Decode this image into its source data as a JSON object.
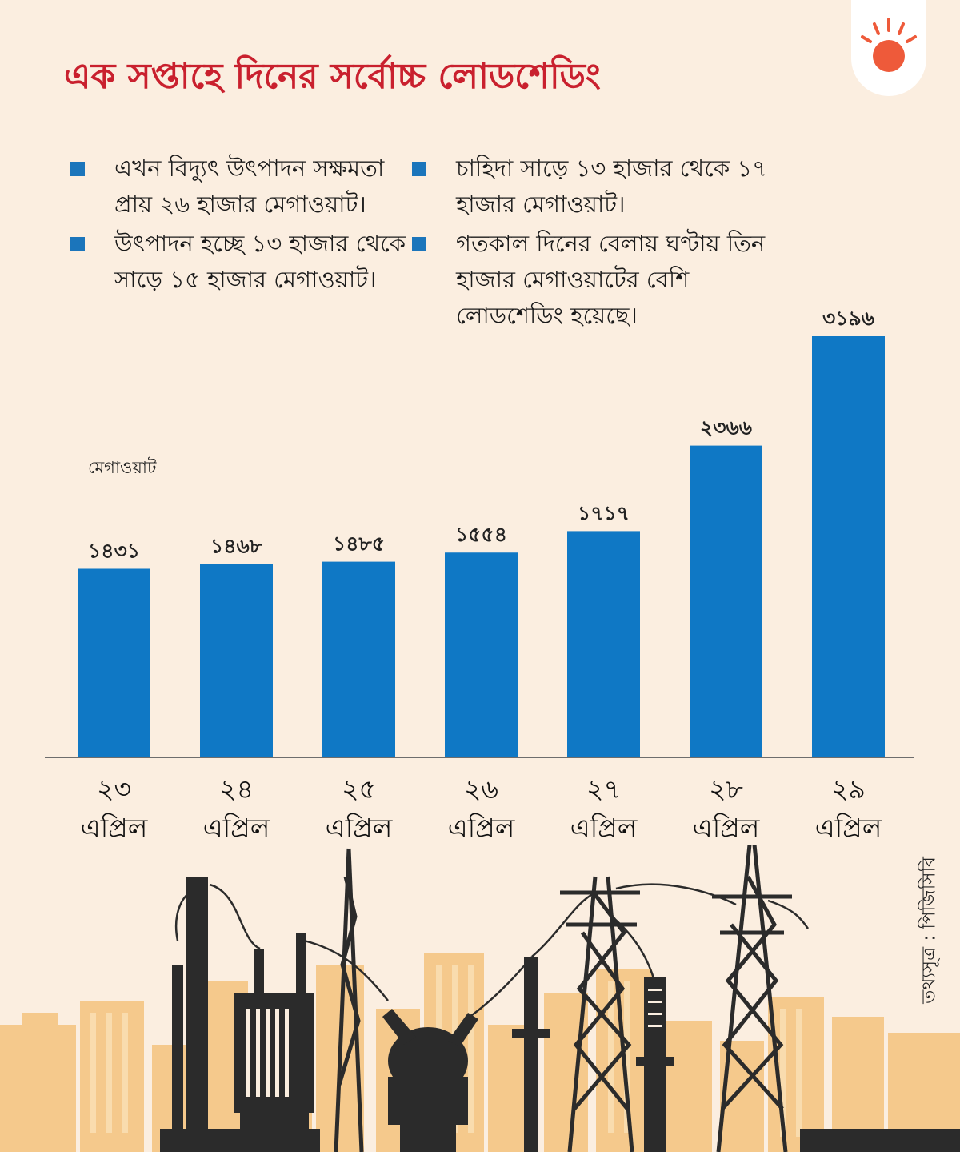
{
  "title": "এক সপ্তাহে দিনের সর্বোচ্চ লোডশেডিং",
  "bullets_left": [
    "এখন বিদ্যুৎ  উৎপাদন সক্ষমতা প্রায় ২৬ হাজার মেগাওয়াট।",
    "উৎপাদন হচ্ছে ১৩ হাজার থেকে সাড়ে ১৫ হাজার মেগাওয়াট।"
  ],
  "bullets_right": [
    "চাহিদা সাড়ে ১৩ হাজার থেকে ১৭ হাজার মেগাওয়াট।",
    "গতকাল দিনের বেলায় ঘণ্টায় তিন হাজার মেগাওয়াটের বেশি লোডশেডিং হয়েছে।"
  ],
  "source": "তথ্যসূত্র : পিজিসিবি",
  "colors": {
    "background": "#fbeee0",
    "title": "#c9202e",
    "bar": "#0f78c5",
    "bullet": "#1b75bb",
    "logo_sun": "#ee5a3a",
    "skyline": "#f5c98c",
    "silhouette": "#2b2b2b"
  },
  "chart_data": {
    "type": "bar",
    "ylabel": "মেগাওয়াট",
    "categories": [
      "২৩ এপ্রিল",
      "২৪ এপ্রিল",
      "২৫ এপ্রিল",
      "২৬ এপ্রিল",
      "২৭ এপ্রিল",
      "২৮ এপ্রিল",
      "২৯ এপ্রিল"
    ],
    "category_day": [
      "২৩",
      "২৪",
      "২৫",
      "২৬",
      "২৭",
      "২৮",
      "২৯"
    ],
    "category_month": [
      "এপ্রিল",
      "এপ্রিল",
      "এপ্রিল",
      "এপ্রিল",
      "এপ্রিল",
      "এপ্রিল",
      "এপ্রিল"
    ],
    "values": [
      1431,
      1468,
      1485,
      1554,
      1717,
      2366,
      3196
    ],
    "value_labels": [
      "১৪৩১",
      "১৪৬৮",
      "১৪৮৫",
      "১৫৫৪",
      "১৭১৭",
      "২৩৬৬",
      "৩১৯৬"
    ],
    "ylim": [
      0,
      3196
    ],
    "grid": false,
    "legend": "none"
  }
}
